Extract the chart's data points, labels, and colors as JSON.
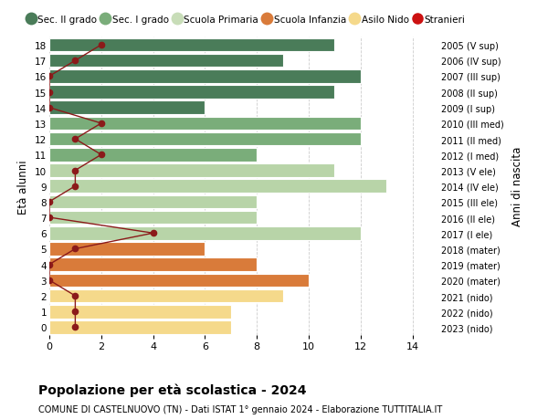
{
  "ages": [
    18,
    17,
    16,
    15,
    14,
    13,
    12,
    11,
    10,
    9,
    8,
    7,
    6,
    5,
    4,
    3,
    2,
    1,
    0
  ],
  "right_labels": [
    "2005 (V sup)",
    "2006 (IV sup)",
    "2007 (III sup)",
    "2008 (II sup)",
    "2009 (I sup)",
    "2010 (III med)",
    "2011 (II med)",
    "2012 (I med)",
    "2013 (V ele)",
    "2014 (IV ele)",
    "2015 (III ele)",
    "2016 (II ele)",
    "2017 (I ele)",
    "2018 (mater)",
    "2019 (mater)",
    "2020 (mater)",
    "2021 (nido)",
    "2022 (nido)",
    "2023 (nido)"
  ],
  "bar_values": [
    11,
    9,
    12,
    11,
    6,
    12,
    12,
    8,
    11,
    13,
    8,
    8,
    12,
    6,
    8,
    10,
    9,
    7,
    7
  ],
  "bar_colors": [
    "#4a7c59",
    "#4a7c59",
    "#4a7c59",
    "#4a7c59",
    "#4a7c59",
    "#7aad7a",
    "#7aad7a",
    "#7aad7a",
    "#b8d4a8",
    "#b8d4a8",
    "#b8d4a8",
    "#b8d4a8",
    "#b8d4a8",
    "#d97b3a",
    "#d97b3a",
    "#d97b3a",
    "#f5d98b",
    "#f5d98b",
    "#f5d98b"
  ],
  "stranieri_values": [
    2,
    1,
    0,
    0,
    0,
    2,
    1,
    2,
    1,
    1,
    0,
    0,
    4,
    1,
    0,
    0,
    1,
    1,
    1
  ],
  "stranieri_color": "#8b1a1a",
  "legend_labels": [
    "Sec. II grado",
    "Sec. I grado",
    "Scuola Primaria",
    "Scuola Infanzia",
    "Asilo Nido",
    "Stranieri"
  ],
  "legend_colors": [
    "#4a7c59",
    "#7aad7a",
    "#c8ddb8",
    "#d97b3a",
    "#f5d98b",
    "#cc1111"
  ],
  "title": "Popolazione per età scolastica - 2024",
  "subtitle": "COMUNE DI CASTELNUOVO (TN) - Dati ISTAT 1° gennaio 2024 - Elaborazione TUTTITALIA.IT",
  "ylabel_left": "Età alunni",
  "ylabel_right": "Anni di nascita",
  "xlim": [
    0,
    15
  ],
  "xticks": [
    0,
    2,
    4,
    6,
    8,
    10,
    12,
    14
  ],
  "background_color": "#ffffff",
  "grid_color": "#cccccc"
}
